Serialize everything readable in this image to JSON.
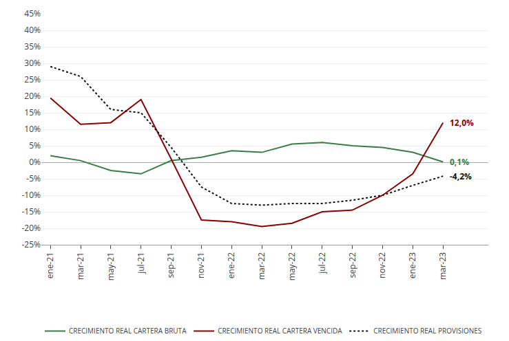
{
  "chart_data": {
    "type": "line",
    "categories": [
      "ene-21",
      "mar-21",
      "may-21",
      "jul-21",
      "sep-21",
      "nov-21",
      "ene-22",
      "mar-22",
      "may-22",
      "jul-22",
      "sep-22",
      "nov-22",
      "ene-23",
      "mar-23"
    ],
    "series": [
      {
        "name": "CRECIMIENTO REAL CARTERA BRUTA",
        "color": "#3a7d44",
        "line_style": "solid",
        "values": [
          2.0,
          0.5,
          -2.5,
          -3.5,
          0.5,
          1.5,
          3.5,
          3.0,
          5.5,
          6.0,
          5.0,
          4.5,
          3.0,
          0.1
        ]
      },
      {
        "name": "CRECIMIENTO REAL CARTERA VENCIDA",
        "color": "#8b0000",
        "line_style": "solid",
        "values": [
          19.5,
          11.5,
          12.0,
          19.0,
          1.0,
          -17.5,
          -18.0,
          -19.5,
          -18.5,
          -15.0,
          -14.5,
          -10.0,
          -3.5,
          12.0
        ]
      },
      {
        "name": "CRECIMIENTO REAL PROVISIONES",
        "color": "#111111",
        "line_style": "dotted",
        "values": [
          29.0,
          26.0,
          16.0,
          15.0,
          4.5,
          -7.5,
          -12.5,
          -13.0,
          -12.5,
          -12.5,
          -11.5,
          -10.0,
          -7.0,
          -4.2
        ]
      }
    ],
    "annotations": [
      {
        "text": "12,0%",
        "x": "mar-23",
        "y": 12.0,
        "color": "#8b0000"
      },
      {
        "text": "0,1%",
        "x": "mar-23",
        "y": 0.1,
        "color": "#3a7d44"
      },
      {
        "text": "-4,2%",
        "x": "mar-23",
        "y": -4.2,
        "color": "#111111"
      }
    ],
    "ylim": [
      -25,
      45
    ],
    "yticks": [
      {
        "value": -25,
        "label": "-25%"
      },
      {
        "value": -20,
        "label": "-20%"
      },
      {
        "value": -15,
        "label": "-15%"
      },
      {
        "value": -10,
        "label": "-10%"
      },
      {
        "value": -5,
        "label": "-5%"
      },
      {
        "value": 0,
        "label": "0%"
      },
      {
        "value": 5,
        "label": "5%"
      },
      {
        "value": 10,
        "label": "10%"
      },
      {
        "value": 15,
        "label": "15%"
      },
      {
        "value": 20,
        "label": "20%"
      },
      {
        "value": 25,
        "label": "25%"
      },
      {
        "value": 30,
        "label": "30%"
      },
      {
        "value": 35,
        "label": "35%"
      },
      {
        "value": 40,
        "label": "40%"
      },
      {
        "value": 45,
        "label": "45%"
      }
    ],
    "grid": true,
    "legend": "bottom"
  }
}
